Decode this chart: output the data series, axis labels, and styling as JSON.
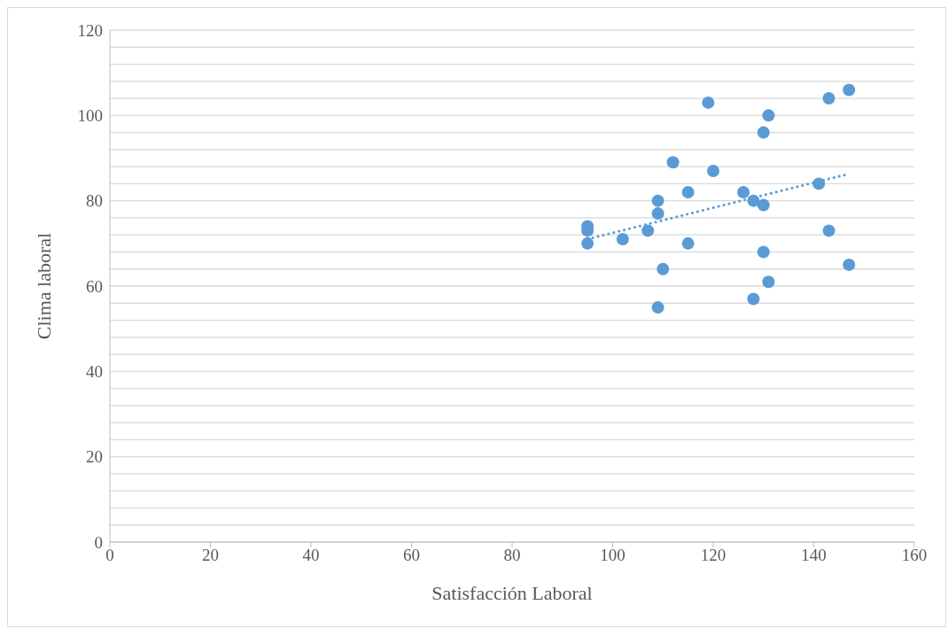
{
  "chart_data": {
    "type": "scatter",
    "xlabel": "Satisfacción Laboral",
    "ylabel": "Clima laboral",
    "xlim": [
      0,
      160
    ],
    "xticks": [
      0,
      20,
      40,
      60,
      80,
      100,
      120,
      140,
      160
    ],
    "ylim": [
      0,
      120
    ],
    "yticks": [
      0,
      {
        "value": 4,
        "label": null
      },
      {
        "value": 8,
        "label": null
      },
      {
        "value": 12,
        "label": null
      },
      {
        "value": 16,
        "label": null
      },
      20,
      {
        "value": 24,
        "label": null
      },
      {
        "value": 28,
        "label": null
      },
      {
        "value": 32,
        "label": null
      },
      {
        "value": 36,
        "label": null
      },
      40,
      {
        "value": 44,
        "label": null
      },
      {
        "value": 48,
        "label": null
      },
      {
        "value": 52,
        "label": null
      },
      {
        "value": 56,
        "label": null
      },
      60,
      {
        "value": 64,
        "label": null
      },
      {
        "value": 68,
        "label": null
      },
      {
        "value": 72,
        "label": null
      },
      {
        "value": 76,
        "label": null
      },
      80,
      {
        "value": 84,
        "label": null
      },
      {
        "value": 88,
        "label": null
      },
      {
        "value": 92,
        "label": null
      },
      {
        "value": 96,
        "label": null
      },
      100,
      {
        "value": 104,
        "label": null
      },
      {
        "value": 108,
        "label": null
      },
      {
        "value": 112,
        "label": null
      },
      {
        "value": 116,
        "label": null
      },
      120
    ],
    "grid": "y",
    "legend": false,
    "series": [
      {
        "color": "#5b9bd5",
        "marker": "circle",
        "x": [
          95,
          95,
          95,
          102,
          107,
          109,
          109,
          109,
          110,
          112,
          115,
          115,
          119,
          120,
          126,
          128,
          128,
          130,
          130,
          130,
          131,
          131,
          141,
          143,
          143,
          147,
          147
        ],
        "values": [
          74,
          73,
          70,
          71,
          73,
          80,
          77,
          55,
          64,
          89,
          82,
          70,
          103,
          87,
          82,
          80,
          57,
          96,
          79,
          68,
          100,
          61,
          84,
          104,
          73,
          106,
          65
        ]
      },
      {
        "type": "line",
        "color": "#5b9bd5",
        "marker": "none",
        "line_style": "dotted",
        "x": [
          95,
          147
        ],
        "values": [
          71,
          86.3
        ]
      }
    ]
  }
}
